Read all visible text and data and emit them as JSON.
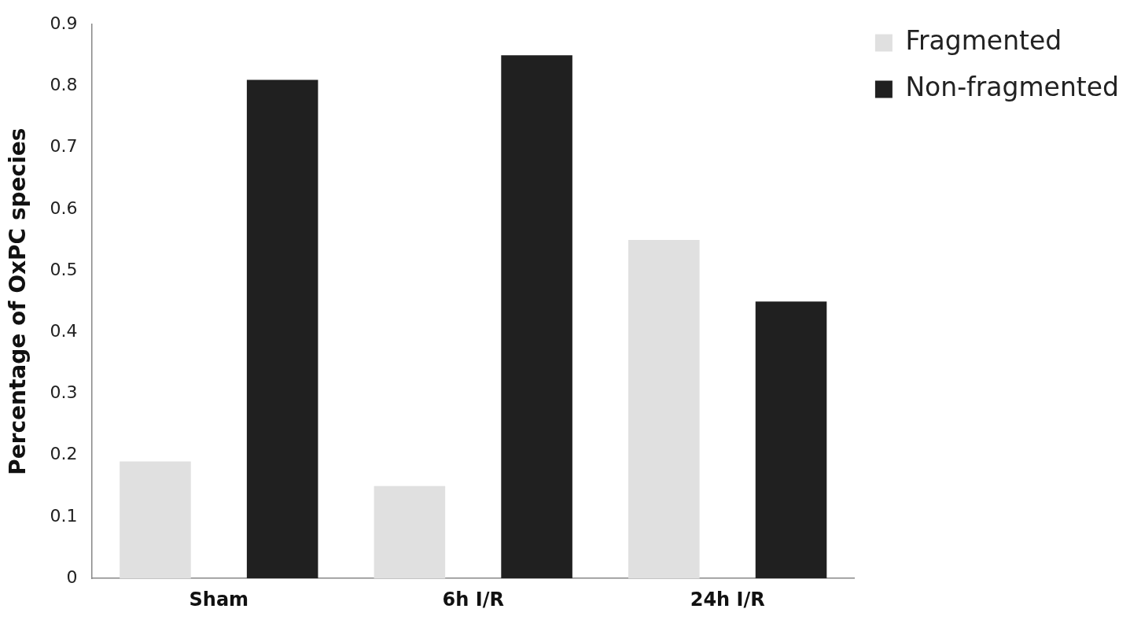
{
  "chart_data": {
    "type": "bar",
    "ylabel": "Percentage of OxPC species",
    "categories": [
      "Sham",
      "6h I/R",
      "24h I/R"
    ],
    "series": [
      {
        "name": "Fragmented",
        "color": "#e0e0e0",
        "values": [
          0.19,
          0.15,
          0.55
        ]
      },
      {
        "name": "Non-fragmented",
        "color": "#202020",
        "values": [
          0.81,
          0.85,
          0.45
        ]
      }
    ],
    "ylim": [
      0,
      0.9
    ],
    "yticks": [
      0,
      0.1,
      0.2,
      0.3,
      0.4,
      0.5,
      0.6,
      0.7,
      0.8,
      0.9
    ],
    "grid": false,
    "legend": "top right"
  }
}
